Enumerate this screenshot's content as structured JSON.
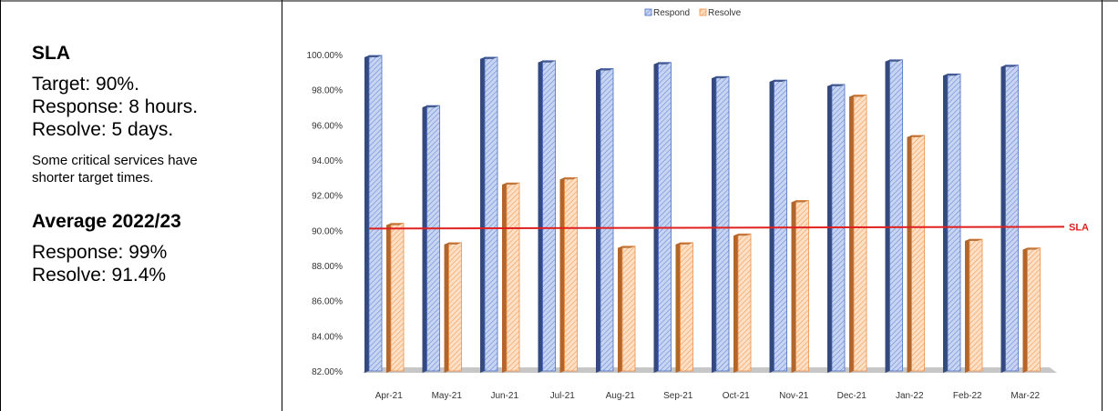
{
  "sidebar": {
    "sla_title": "SLA",
    "target": "Target: 90%.",
    "response": "Response: 8 hours.",
    "resolve": "Resolve: 5 days.",
    "note_line1": "Some critical services have",
    "note_line2": "shorter target times.",
    "average_title": "Average 2022/23",
    "avg_response": "Response: 99%",
    "avg_resolve": "Resolve: 91.4%"
  },
  "colors": {
    "respond_fill": "#b9c9ee",
    "respond_edge": "#4a6fc4",
    "respond_dark": "#34497e",
    "resolve_fill": "#fbd3b0",
    "resolve_edge": "#ef8f45",
    "resolve_dark": "#b3662b",
    "sla_line": "#e0201f",
    "floor": "#c7c7c7"
  },
  "chart_data": {
    "type": "bar",
    "categories": [
      "Apr-21",
      "May-21",
      "Jun-21",
      "Jul-21",
      "Aug-21",
      "Sep-21",
      "Oct-21",
      "Nov-21",
      "Dec-21",
      "Jan-22",
      "Feb-22",
      "Mar-22"
    ],
    "series": [
      {
        "name": "Respond",
        "values": [
          99.95,
          97.1,
          99.85,
          99.65,
          99.2,
          99.55,
          98.75,
          98.55,
          98.3,
          99.7,
          98.9,
          99.4
        ]
      },
      {
        "name": "Resolve",
        "values": [
          90.4,
          89.3,
          92.7,
          93.0,
          89.1,
          89.3,
          89.8,
          91.7,
          97.7,
          95.4,
          89.5,
          89.0
        ]
      }
    ],
    "ylim": [
      82,
      100
    ],
    "yticks": [
      "82.00%",
      "84.00%",
      "86.00%",
      "88.00%",
      "90.00%",
      "92.00%",
      "94.00%",
      "96.00%",
      "98.00%",
      "100.00%"
    ],
    "ytick_values": [
      82,
      84,
      86,
      88,
      90,
      92,
      94,
      96,
      98,
      100
    ],
    "reference_line": {
      "label": "SLA",
      "value": 90.1
    },
    "legend_position": "top-center"
  }
}
